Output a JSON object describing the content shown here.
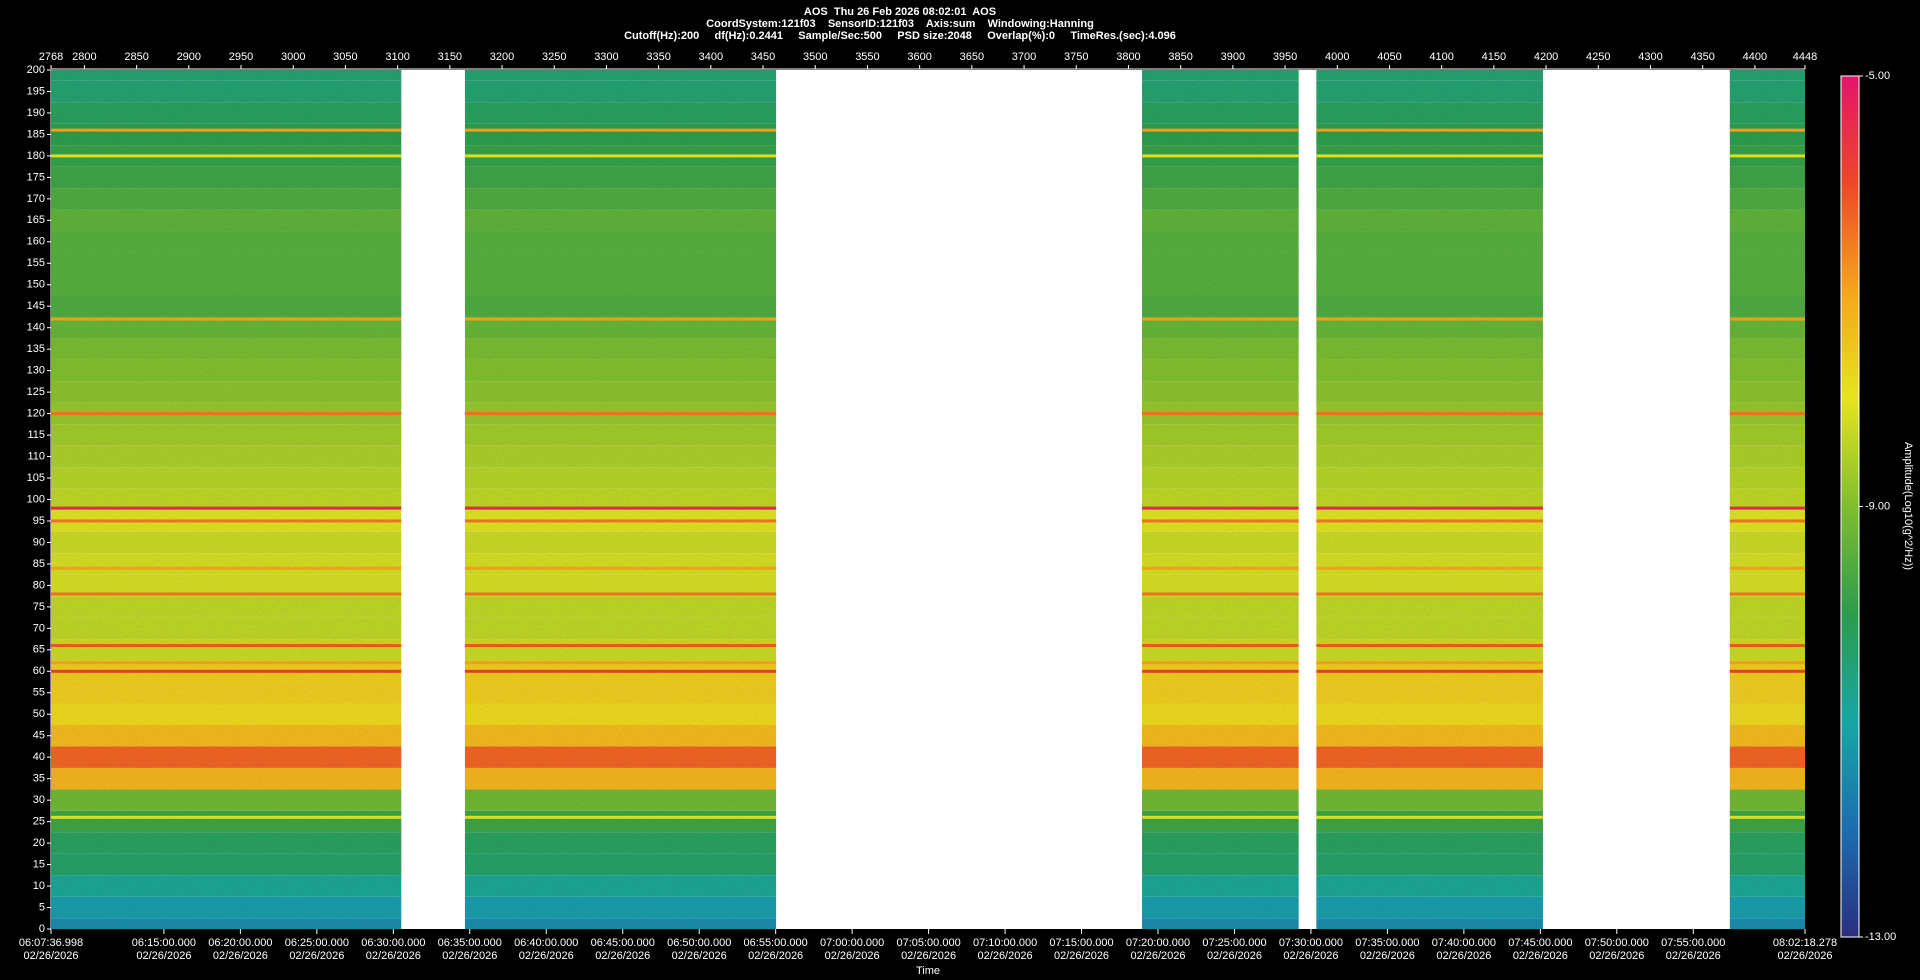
{
  "chart_data": {
    "type": "spectrogram",
    "title": "AOS  Thu 26 Feb 2026 08:02:01  AOS",
    "subtitle": [
      "CoordSystem:121f03    SensorID:121f03    Axis:sum    Windowing:Hanning",
      "Cutoff(Hz):200     df(Hz):0.2441     Sample/Sec:500     PSD size:2048     Overlap(%):0     TimeRes.(sec):4.096"
    ],
    "x_label": "Time",
    "colorbar_label": "Amplitude(Log10(g^2/Hz))",
    "xlim": [
      2768,
      4448
    ],
    "x2ticks": [
      2768,
      2800,
      2850,
      2900,
      2950,
      3000,
      3050,
      3100,
      3150,
      3200,
      3250,
      3300,
      3350,
      3400,
      3450,
      3500,
      3550,
      3600,
      3650,
      3700,
      3750,
      3800,
      3850,
      3900,
      3950,
      4000,
      4050,
      4100,
      4150,
      4200,
      4250,
      4300,
      4350,
      4400,
      4448
    ],
    "xticks": [
      {
        "value": 2768,
        "label": "06:07:36.998",
        "date": "02/26/2026"
      },
      {
        "value": 2876.16,
        "label": "06:15:00.000",
        "date": "02/26/2026"
      },
      {
        "value": 2949.4,
        "label": "06:20:00.000",
        "date": "02/26/2026"
      },
      {
        "value": 3022.64,
        "label": "06:25:00.000",
        "date": "02/26/2026"
      },
      {
        "value": 3095.88,
        "label": "06:30:00.000",
        "date": "02/26/2026"
      },
      {
        "value": 3169.13,
        "label": "06:35:00.000",
        "date": "02/26/2026"
      },
      {
        "value": 3242.37,
        "label": "06:40:00.000",
        "date": "02/26/2026"
      },
      {
        "value": 3315.61,
        "label": "06:45:00.000",
        "date": "02/26/2026"
      },
      {
        "value": 3388.85,
        "label": "06:50:00.000",
        "date": "02/26/2026"
      },
      {
        "value": 3462.09,
        "label": "06:55:00.000",
        "date": "02/26/2026"
      },
      {
        "value": 3535.33,
        "label": "07:00:00.000",
        "date": "02/26/2026"
      },
      {
        "value": 3608.57,
        "label": "07:05:00.000",
        "date": "02/26/2026"
      },
      {
        "value": 3681.82,
        "label": "07:10:00.000",
        "date": "02/26/2026"
      },
      {
        "value": 3755.06,
        "label": "07:15:00.000",
        "date": "02/26/2026"
      },
      {
        "value": 3828.3,
        "label": "07:20:00.000",
        "date": "02/26/2026"
      },
      {
        "value": 3901.54,
        "label": "07:25:00.000",
        "date": "02/26/2026"
      },
      {
        "value": 3974.78,
        "label": "07:30:00.000",
        "date": "02/26/2026"
      },
      {
        "value": 4048.02,
        "label": "07:35:00.000",
        "date": "02/26/2026"
      },
      {
        "value": 4121.27,
        "label": "07:40:00.000",
        "date": "02/26/2026"
      },
      {
        "value": 4194.51,
        "label": "07:45:00.000",
        "date": "02/26/2026"
      },
      {
        "value": 4267.75,
        "label": "07:50:00.000",
        "date": "02/26/2026"
      },
      {
        "value": 4340.99,
        "label": "07:55:00.000",
        "date": "02/26/2026"
      },
      {
        "value": 4448,
        "label": "08:02:18.278",
        "date": "02/26/2026"
      }
    ],
    "ylim": [
      0,
      200
    ],
    "yticks": [
      0,
      5,
      10,
      15,
      20,
      25,
      30,
      35,
      40,
      45,
      50,
      55,
      60,
      65,
      70,
      75,
      80,
      85,
      90,
      95,
      100,
      105,
      110,
      115,
      120,
      125,
      130,
      135,
      140,
      145,
      150,
      155,
      160,
      165,
      170,
      175,
      180,
      185,
      190,
      195,
      200
    ],
    "clim": [
      -13,
      -5
    ],
    "cticks": [
      {
        "value": -13,
        "label": "-13.00"
      },
      {
        "value": -9,
        "label": "-9.00"
      },
      {
        "value": -5,
        "label": "-5.00"
      }
    ],
    "colormap": [
      "#2a2f7e",
      "#1c6db0",
      "#17a6a6",
      "#2c9c4c",
      "#80bd2e",
      "#e6e41f",
      "#f5a51c",
      "#ee4727",
      "#e3156b"
    ],
    "segments": [
      [
        2768,
        3103.5
      ],
      [
        3164.5,
        3462.5
      ],
      [
        3813,
        3963
      ],
      [
        3980,
        4197
      ],
      [
        4376,
        4448
      ]
    ],
    "profile": {
      "freq": [
        0,
        5,
        10,
        15,
        20,
        25,
        30,
        35,
        40,
        45,
        50,
        55,
        60,
        65,
        70,
        75,
        80,
        85,
        90,
        95,
        100,
        105,
        110,
        115,
        120,
        125,
        130,
        135,
        140,
        145,
        150,
        155,
        160,
        165,
        170,
        175,
        180,
        185,
        190,
        195,
        200
      ],
      "amplitude": [
        -11.5,
        -11.2,
        -10.8,
        -10.3,
        -10.2,
        -9.8,
        -9.2,
        -7.2,
        -6.3,
        -7.3,
        -7.8,
        -7.6,
        -7.6,
        -8.3,
        -8.4,
        -8.4,
        -8.2,
        -8.2,
        -8.3,
        -8.1,
        -8.4,
        -8.5,
        -8.6,
        -8.7,
        -8.8,
        -8.9,
        -9.0,
        -9.1,
        -9.3,
        -9.6,
        -9.5,
        -9.5,
        -9.5,
        -9.4,
        -9.6,
        -9.8,
        -9.9,
        -10.0,
        -10.2,
        -10.4,
        -10.4
      ]
    },
    "lines": {
      "freq": [
        186,
        180,
        142,
        120,
        98,
        95,
        84,
        78,
        66,
        62,
        60,
        26
      ],
      "amplitude": [
        -7,
        -8,
        -7,
        -6.5,
        -5.5,
        -6.5,
        -7,
        -6.5,
        -6.2,
        -7,
        -5.8,
        -8
      ]
    }
  }
}
